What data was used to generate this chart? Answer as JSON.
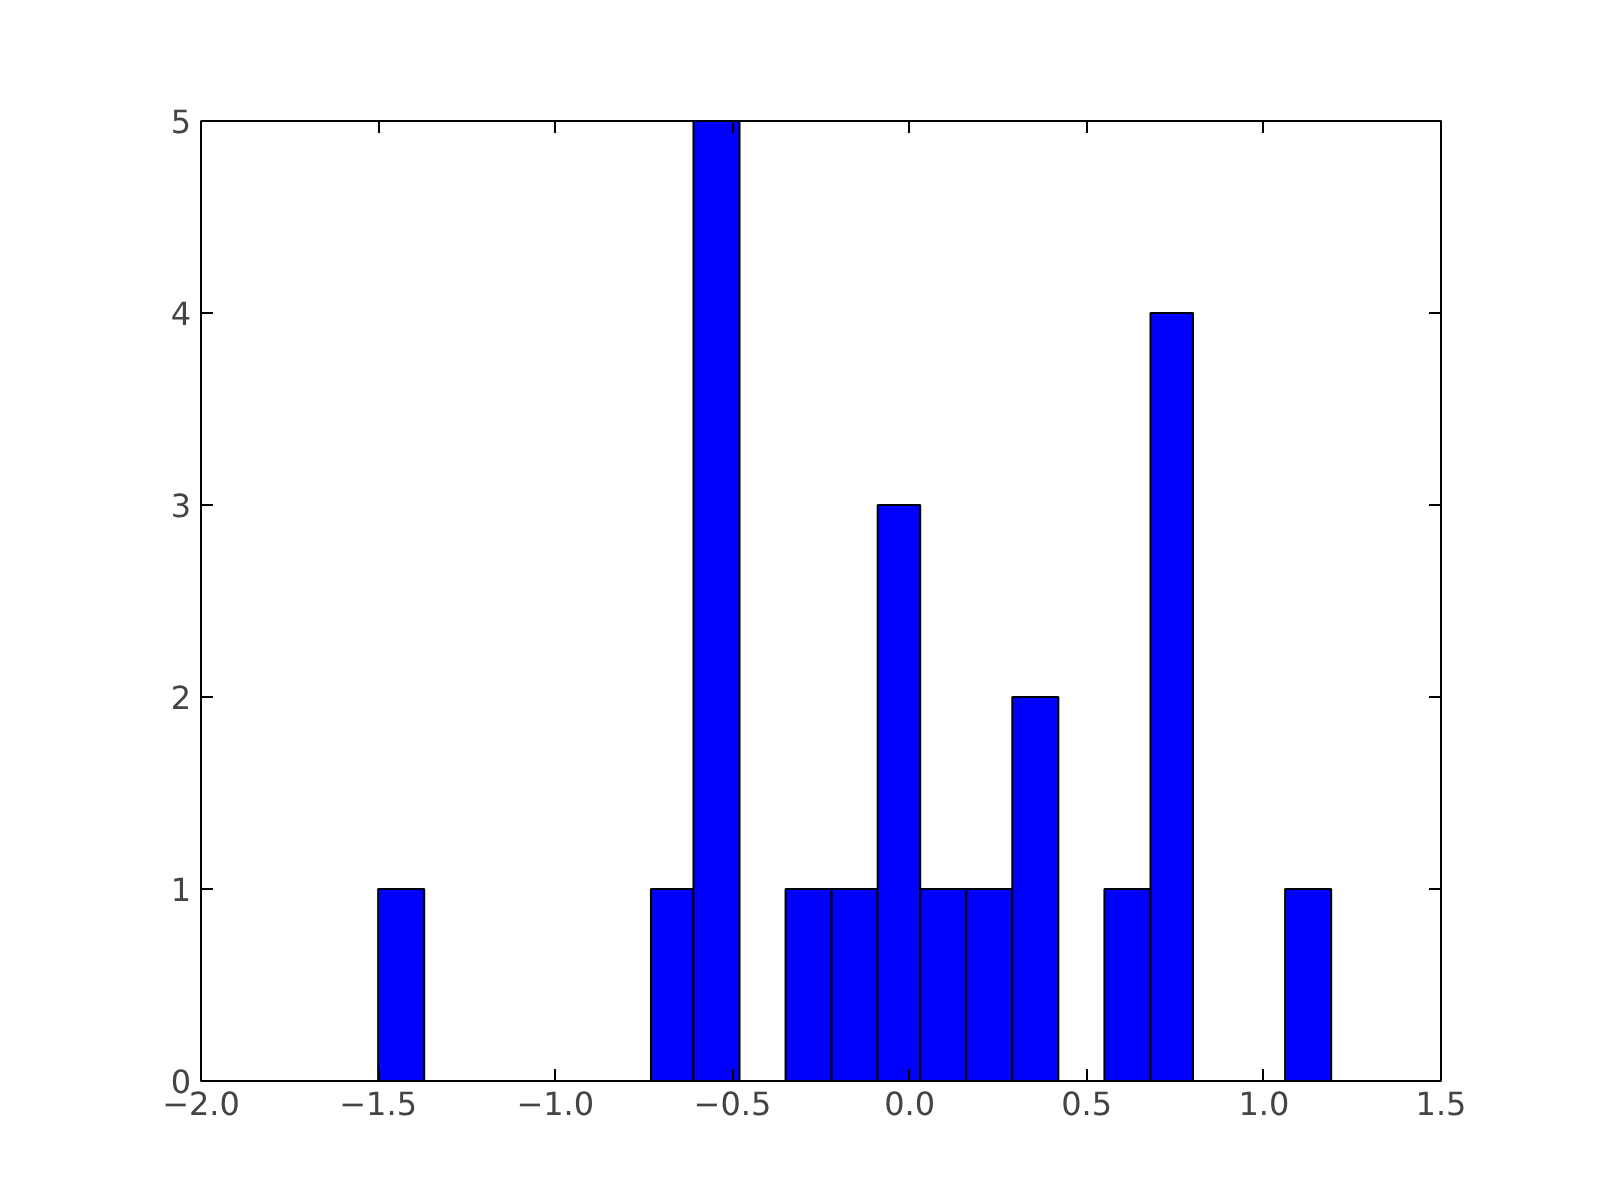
{
  "chart_data": {
    "type": "histogram",
    "bins": [
      -1.5,
      -1.37,
      -0.73,
      -0.61,
      -0.48,
      -0.35,
      -0.22,
      -0.09,
      0.03,
      0.16,
      0.29,
      0.42,
      0.55,
      0.68,
      0.8,
      1.06,
      1.19
    ],
    "values": [
      1,
      0,
      1,
      5,
      0,
      1,
      1,
      3,
      1,
      1,
      2,
      0,
      1,
      4,
      0,
      1
    ],
    "color": "#0000ff",
    "xlim": [
      -2.0,
      1.5
    ],
    "xticks": [
      {
        "value": -2.0,
        "label": "−2.0"
      },
      {
        "value": -1.5,
        "label": "−1.5"
      },
      {
        "value": -1.0,
        "label": "−1.0"
      },
      {
        "value": -0.5,
        "label": "−0.5"
      },
      {
        "value": 0.0,
        "label": "0.0"
      },
      {
        "value": 0.5,
        "label": "0.5"
      },
      {
        "value": 1.0,
        "label": "1.0"
      },
      {
        "value": 1.5,
        "label": "1.5"
      }
    ],
    "ylim": [
      0,
      5
    ],
    "yticks": [
      0,
      1,
      2,
      3,
      4,
      5
    ],
    "grid": false
  }
}
